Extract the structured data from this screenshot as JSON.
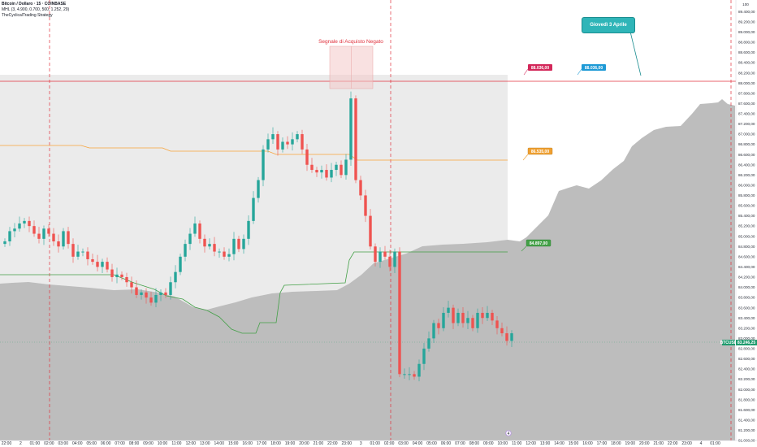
{
  "legend": {
    "symbol_line": "Bitcoin / Dollaro · 15 · COINBASE",
    "ind_line": "MHL (3, 4.900, 0.700, 500, 1.252, 29)",
    "strategy_line": "TheCyclicalTrading Strategy"
  },
  "top_right_label": "100",
  "signal_label": "Segnale di Acquisto Negato",
  "callout_label": "Giovedì 3 Aprile",
  "day_marker": "4",
  "colors": {
    "up": "#26a69a",
    "down": "#ef5350",
    "cloud_light": "#ebebeb",
    "cloud_dark": "#bdbdbd",
    "orange_line": "#f7a33b",
    "green_line": "#43a047",
    "red_line": "#e0313c"
  },
  "tags": {
    "tag_red": "88.036,00",
    "tag_blue": "88.036,00",
    "tag_orange": "86.535,00",
    "tag_green": "84.897,00"
  },
  "price_axis": {
    "labels": [
      "89.400,00",
      "89.200,00",
      "89.000,00",
      "88.800,00",
      "88.600,00",
      "88.400,00",
      "88.200,00",
      "88.000,00",
      "87.800,00",
      "87.600,00",
      "87.400,00",
      "87.200,00",
      "87.000,00",
      "86.800,00",
      "86.600,00",
      "86.400,00",
      "86.200,00",
      "86.000,00",
      "85.800,00",
      "85.600,00",
      "85.400,00",
      "85.200,00",
      "85.000,00",
      "84.800,00",
      "84.600,00",
      "84.400,00",
      "84.200,00",
      "84.000,00",
      "83.800,00",
      "83.600,00",
      "83.400,00",
      "83.200,00",
      "83.000,00",
      "82.800,00",
      "82.600,00",
      "82.400,00",
      "82.200,00",
      "82.000,00",
      "81.800,00",
      "81.600,00",
      "81.400,00",
      "81.200,00",
      "81.000,00"
    ],
    "current_price": "83.246,25",
    "current_tag": "BTCUSD"
  },
  "time_axis": {
    "labels": [
      "22:00",
      "2",
      "01:00",
      "02:00",
      "03:00",
      "04:00",
      "05:00",
      "06:00",
      "07:00",
      "08:00",
      "09:00",
      "10:00",
      "11:00",
      "12:00",
      "13:00",
      "14:00",
      "15:00",
      "16:00",
      "17:00",
      "18:00",
      "19:00",
      "20:00",
      "21:00",
      "22:00",
      "23:00",
      "3",
      "01:00",
      "02:00",
      "03:00",
      "04:00",
      "05:00",
      "06:00",
      "07:00",
      "08:00",
      "09:00",
      "10:00",
      "11:00",
      "12:00",
      "13:00",
      "14:00",
      "15:00",
      "16:00",
      "17:00",
      "18:00",
      "19:00",
      "20:00",
      "21:00",
      "22:00",
      "23:00",
      "4",
      "01:00"
    ]
  },
  "chart_data": {
    "type": "candlestick",
    "symbol": "Bitcoin / Dollaro",
    "interval": "15",
    "exchange": "COINBASE",
    "ylim": [
      81000,
      89500
    ],
    "close_values": [
      84900,
      85100,
      85150,
      85250,
      85300,
      85200,
      85050,
      84950,
      85150,
      85050,
      84900,
      84800,
      85100,
      84850,
      84600,
      84700,
      84700,
      84550,
      84500,
      84400,
      84500,
      84350,
      84200,
      84250,
      84200,
      84100,
      84000,
      83850,
      83900,
      83800,
      83700,
      83850,
      83900,
      83850,
      84100,
      84300,
      84600,
      84850,
      85050,
      85250,
      84950,
      84800,
      84850,
      84700,
      84700,
      84600,
      84650,
      84950,
      84750,
      84950,
      85300,
      85750,
      86100,
      86700,
      86900,
      87000,
      86700,
      86850,
      86800,
      86900,
      87000,
      86700,
      86400,
      86300,
      86250,
      86300,
      86150,
      86300,
      86400,
      86200,
      86500,
      87700,
      86100,
      85800,
      85400,
      84800,
      84500,
      84700,
      84600,
      84400,
      84700,
      82300,
      82300,
      82300,
      82250,
      82500,
      82800,
      83000,
      83300,
      83200,
      83500,
      83600,
      83300,
      83500,
      83300,
      83400,
      83200,
      83500,
      83400,
      83500,
      83350,
      83200,
      83100,
      82950,
      83100
    ],
    "levels": {
      "red_line": 88036,
      "orange_line": 86535,
      "green_line": 84897,
      "last_price": 83246.25
    },
    "annotation": "Segnale di Acquisto Negato",
    "callout": "Giovedì 3 Aprile"
  }
}
